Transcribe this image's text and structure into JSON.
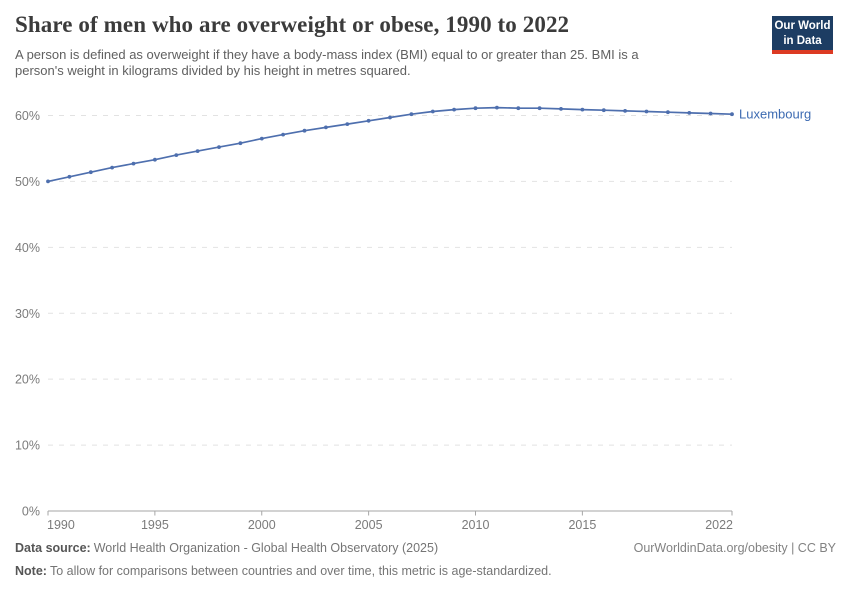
{
  "header": {
    "title": "Share of men who are overweight or obese, 1990 to 2022",
    "subtitle_line1": "A person is defined as overweight if they have a body-mass index (BMI) equal to or greater than 25. BMI is a",
    "subtitle_line2": "person's weight in kilograms divided by his height in metres squared.",
    "logo": {
      "line1": "Our World",
      "line2": "in Data",
      "bg_color": "#1d3d63",
      "bar_color": "#dc3a23"
    }
  },
  "chart_data": {
    "type": "line",
    "title": "Share of men who are overweight or obese, 1990 to 2022",
    "x": [
      1990,
      1991,
      1992,
      1993,
      1994,
      1995,
      1996,
      1997,
      1998,
      1999,
      2000,
      2001,
      2002,
      2003,
      2004,
      2005,
      2006,
      2007,
      2008,
      2009,
      2010,
      2011,
      2012,
      2013,
      2014,
      2015,
      2016,
      2017,
      2018,
      2019,
      2020,
      2021,
      2022
    ],
    "series": [
      {
        "name": "Luxembourg",
        "color": "#4e6fae",
        "label_color": "#3d6bb2",
        "values": [
          50.0,
          50.7,
          51.4,
          52.1,
          52.7,
          53.3,
          54.0,
          54.6,
          55.2,
          55.8,
          56.5,
          57.1,
          57.7,
          58.2,
          58.7,
          59.2,
          59.7,
          60.2,
          60.6,
          60.9,
          61.1,
          61.2,
          61.1,
          61.1,
          61.0,
          60.9,
          60.8,
          60.7,
          60.6,
          60.5,
          60.4,
          60.3,
          60.2
        ]
      }
    ],
    "xticks": [
      1990,
      1995,
      2000,
      2005,
      2010,
      2015,
      2022
    ],
    "yticks": [
      0,
      10,
      20,
      30,
      40,
      50,
      60
    ],
    "ytick_suffix": "%",
    "xlim": [
      1990,
      2022
    ],
    "ylim": [
      0,
      62
    ],
    "grid": "horizontal-dashed",
    "gridline_color": "#e2e2e2",
    "axis_color": "#a6a6a6",
    "legend_position": "end-of-line-label"
  },
  "footer": {
    "datasource_label": "Data source:",
    "datasource_text": "World Health Organization - Global Health Observatory (2025)",
    "note_label": "Note:",
    "note_text": "To allow for comparisons between countries and over time, this metric is age-standardized.",
    "link_text": "OurWorldinData.org/obesity | CC BY"
  }
}
